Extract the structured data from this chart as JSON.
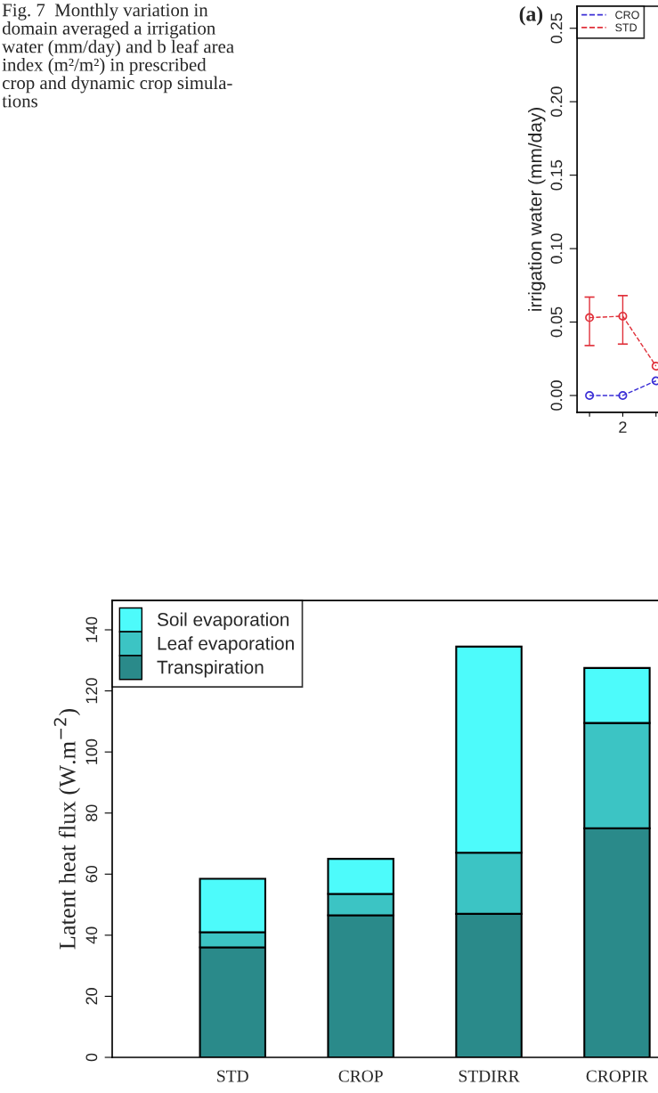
{
  "chart_data": [
    {
      "type": "line",
      "ylabel": "irrigation water (mm/day)",
      "annotations": [
        "Fig. 7  Monthly variation in\ndomain averaged a irrigation\nwater (mm/day) and b leaf area\nindex (m²/m²) in prescribed\ncrop and dynamic crop simula-\ntions",
        "(a)"
      ],
      "categories": [
        null,
        "2",
        null
      ],
      "ylim": [
        -0.0115,
        0.265
      ],
      "yticks": [
        {
          "value": 0,
          "label": "0.00"
        },
        {
          "value": 0.05,
          "label": "0.05"
        },
        {
          "value": 0.1,
          "label": "0.10"
        },
        {
          "value": 0.15,
          "label": "0.15"
        },
        {
          "value": 0.2,
          "label": "0.20"
        },
        {
          "value": 0.25,
          "label": "0.25"
        }
      ],
      "series": [
        {
          "name": "CRO",
          "color": "#3b2fd6",
          "values": [
            0,
            0,
            0.01
          ]
        },
        {
          "name": "STD",
          "color": "#e0303a",
          "values": [
            0.053,
            0.054,
            0.02
          ],
          "errors": [
            [
              0.034,
              0.067
            ],
            [
              0.035,
              0.068
            ],
            null
          ]
        }
      ],
      "marker": "circle",
      "line_style": "dashed",
      "legend": "top left",
      "grid": false
    },
    {
      "type": "bar",
      "stacked": true,
      "ylabel": "Latent heat flux (W.m$^{−2}$)",
      "categories": [
        "STD",
        "CROP",
        "STDIRR",
        "CROPIR"
      ],
      "ylim": [
        0,
        149.6
      ],
      "yticks": [
        0,
        20,
        40,
        60,
        80,
        100,
        120,
        140
      ],
      "series": [
        {
          "name": "Transpiration",
          "color": "#2a8a8a",
          "values": [
            36,
            46.5,
            47,
            75
          ]
        },
        {
          "name": "Leaf evaporation",
          "color": "#3cc4c4",
          "values": [
            5,
            7,
            20,
            34.5
          ]
        },
        {
          "name": "Soil evaporation",
          "color": "#4dfbfb",
          "values": [
            17.5,
            11.5,
            67.5,
            18
          ]
        }
      ],
      "legend": "top left",
      "grid": false
    }
  ]
}
